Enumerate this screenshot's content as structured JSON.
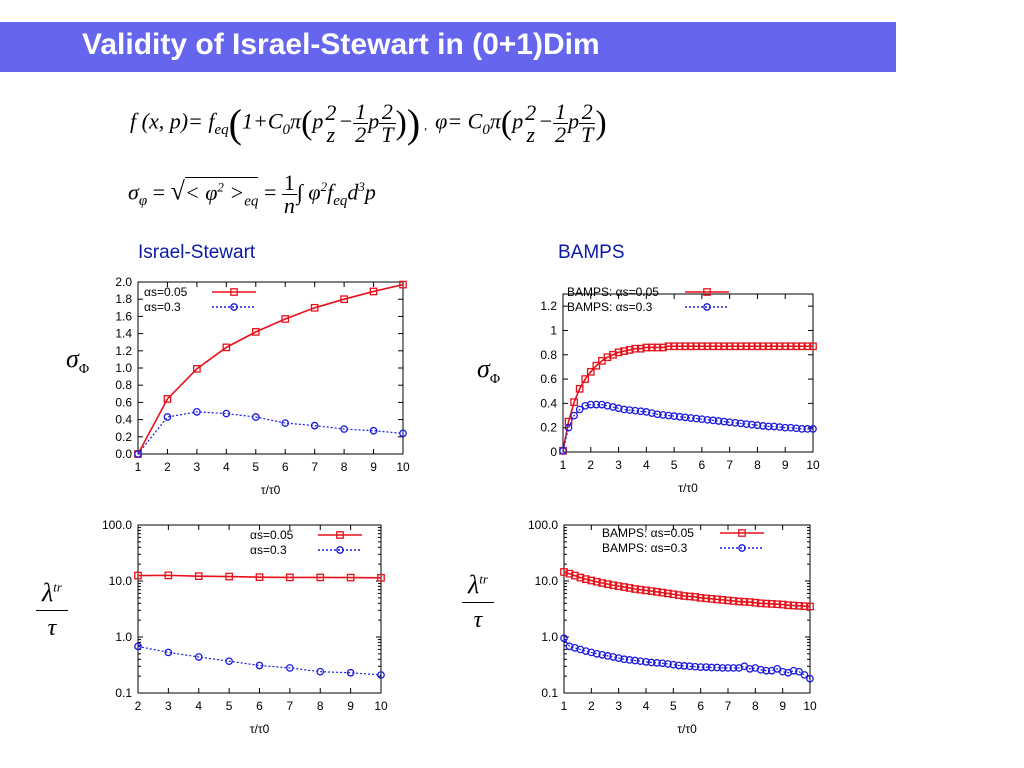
{
  "slide": {
    "title": "Validity of Israel-Stewart in (0+1)Dim",
    "equation1": {
      "lhs": "f (x, p)= f",
      "lhs_sub": "eq",
      "body": "1+C",
      "c_sub": "0",
      "pi": "π",
      "p": "p",
      "z2": "2",
      "z": "z",
      "minus": "−",
      "half_num": "1",
      "half_den": "2",
      "pT_num": "p2",
      "pT_den": "T",
      "phi_lhs": "φ= C",
      "sep": ","
    },
    "equation2": {
      "sigma": "σ",
      "sigma_sub": "φ",
      "eqs": "=",
      "bracket": "< φ",
      "two": "2",
      "close": ">",
      "eq_sub": "eq",
      "eq2": "=",
      "n_num": "1",
      "n_den": "n",
      "integral": "∫ φ",
      "f": "f",
      "f_sub": "eq",
      "d": "d",
      "three": "3",
      "p": "p"
    },
    "left_heading": "Israel-Stewart",
    "right_heading": "BAMPS",
    "sigma_label": "σ",
    "sigma_label_sub": "Φ",
    "lambda_label": "λ",
    "lambda_sup": "tr",
    "tau_label": "τ"
  },
  "chart_data": [
    {
      "id": "is-sigma",
      "type": "line",
      "xlabel": "τ/τ0",
      "ylabel": "σΦ",
      "xlim": [
        1,
        10
      ],
      "ylim": [
        0,
        2.0
      ],
      "xticks": [
        1,
        2,
        3,
        4,
        5,
        6,
        7,
        8,
        9,
        10
      ],
      "yticks": [
        0,
        0.2,
        0.4,
        0.6,
        0.8,
        1.0,
        1.2,
        1.4,
        1.6,
        1.8,
        2.0
      ],
      "ytick_labels": [
        "0.0",
        "0.2",
        "0.4",
        "0.6",
        "0.8",
        "1.0",
        "1.2",
        "1.4",
        "1.6",
        "1.8",
        "2.0"
      ],
      "legend_position": "top-left",
      "series": [
        {
          "name": "αs=0.05",
          "color": "#e8101a",
          "line": "solid",
          "marker": "square",
          "x": [
            1,
            2,
            3,
            4,
            5,
            6,
            7,
            8,
            9,
            10
          ],
          "y": [
            0.0,
            0.64,
            0.99,
            1.24,
            1.42,
            1.57,
            1.7,
            1.8,
            1.89,
            1.97
          ]
        },
        {
          "name": "αs=0.3",
          "color": "#1a1ae0",
          "line": "dotted",
          "marker": "circle",
          "x": [
            1,
            2,
            3,
            4,
            5,
            6,
            7,
            8,
            9,
            10
          ],
          "y": [
            0.0,
            0.43,
            0.49,
            0.47,
            0.43,
            0.36,
            0.33,
            0.29,
            0.27,
            0.24
          ]
        }
      ]
    },
    {
      "id": "bamps-sigma",
      "type": "line",
      "xlabel": "τ/τ0",
      "ylabel": "σΦ",
      "xlim": [
        1,
        10
      ],
      "ylim": [
        0,
        1.3
      ],
      "xticks": [
        1,
        2,
        3,
        4,
        5,
        6,
        7,
        8,
        9,
        10
      ],
      "yticks": [
        0,
        0.2,
        0.4,
        0.6,
        0.8,
        1.0,
        1.2
      ],
      "ytick_labels": [
        "0",
        "0.2",
        "0.4",
        "0.6",
        "0.8",
        "1",
        "1.2"
      ],
      "legend_position": "top-right",
      "series": [
        {
          "name": "BAMPS: αs=0.05",
          "color": "#e8101a",
          "line": "solid",
          "marker": "square",
          "x": [
            1,
            1.2,
            1.4,
            1.6,
            1.8,
            2,
            2.2,
            2.4,
            2.6,
            2.8,
            3,
            3.2,
            3.4,
            3.6,
            3.8,
            4,
            4.2,
            4.4,
            4.6,
            4.8,
            5,
            5.2,
            5.4,
            5.6,
            5.8,
            6,
            6.2,
            6.4,
            6.6,
            6.8,
            7,
            7.2,
            7.4,
            7.6,
            7.8,
            8,
            8.2,
            8.4,
            8.6,
            8.8,
            9,
            9.2,
            9.4,
            9.6,
            9.8,
            10
          ],
          "y": [
            0.01,
            0.25,
            0.41,
            0.52,
            0.6,
            0.66,
            0.71,
            0.75,
            0.78,
            0.8,
            0.82,
            0.83,
            0.84,
            0.85,
            0.85,
            0.86,
            0.86,
            0.86,
            0.86,
            0.87,
            0.87,
            0.87,
            0.87,
            0.87,
            0.87,
            0.87,
            0.87,
            0.87,
            0.87,
            0.87,
            0.87,
            0.87,
            0.87,
            0.87,
            0.87,
            0.87,
            0.87,
            0.87,
            0.87,
            0.87,
            0.87,
            0.87,
            0.87,
            0.87,
            0.87,
            0.87
          ]
        },
        {
          "name": "BAMPS: αs=0.3",
          "color": "#1a1ae0",
          "line": "dotted",
          "marker": "circle",
          "x": [
            1,
            1.2,
            1.4,
            1.6,
            1.8,
            2,
            2.2,
            2.4,
            2.6,
            2.8,
            3,
            3.2,
            3.4,
            3.6,
            3.8,
            4,
            4.2,
            4.4,
            4.6,
            4.8,
            5,
            5.2,
            5.4,
            5.6,
            5.8,
            6,
            6.2,
            6.4,
            6.6,
            6.8,
            7,
            7.2,
            7.4,
            7.6,
            7.8,
            8,
            8.2,
            8.4,
            8.6,
            8.8,
            9,
            9.2,
            9.4,
            9.6,
            9.8,
            10
          ],
          "y": [
            0.01,
            0.2,
            0.3,
            0.35,
            0.38,
            0.39,
            0.39,
            0.39,
            0.38,
            0.37,
            0.36,
            0.35,
            0.345,
            0.34,
            0.335,
            0.33,
            0.32,
            0.31,
            0.305,
            0.3,
            0.295,
            0.29,
            0.285,
            0.28,
            0.275,
            0.27,
            0.265,
            0.26,
            0.255,
            0.25,
            0.245,
            0.24,
            0.235,
            0.23,
            0.225,
            0.22,
            0.215,
            0.21,
            0.21,
            0.205,
            0.2,
            0.2,
            0.195,
            0.19,
            0.19,
            0.19
          ]
        }
      ]
    },
    {
      "id": "is-lambda",
      "type": "line",
      "yscale": "log",
      "xlabel": "τ/τ0",
      "ylabel": "λtr/τ",
      "xlim": [
        2,
        10
      ],
      "ylim": [
        0.1,
        100
      ],
      "xticks": [
        2,
        3,
        4,
        5,
        6,
        7,
        8,
        9,
        10
      ],
      "yticks": [
        0.1,
        1,
        10,
        100
      ],
      "ytick_labels": [
        "0.1",
        "1.0",
        "10.0",
        "100.0"
      ],
      "legend_position": "top-right",
      "series": [
        {
          "name": "αs=0.05",
          "color": "#e8101a",
          "line": "solid",
          "marker": "square",
          "x": [
            2,
            3,
            4,
            5,
            6,
            7,
            8,
            9,
            10
          ],
          "y": [
            12.5,
            12.6,
            12.2,
            12.0,
            11.7,
            11.6,
            11.6,
            11.5,
            11.4
          ]
        },
        {
          "name": "αs=0.3",
          "color": "#1a1ae0",
          "line": "dotted",
          "marker": "circle",
          "x": [
            2,
            3,
            4,
            5,
            6,
            7,
            8,
            9,
            10
          ],
          "y": [
            0.68,
            0.53,
            0.44,
            0.37,
            0.31,
            0.28,
            0.24,
            0.23,
            0.21
          ]
        }
      ]
    },
    {
      "id": "bamps-lambda",
      "type": "line",
      "yscale": "log",
      "xlabel": "τ/τ0",
      "ylabel": "λtr/τ",
      "xlim": [
        1,
        10
      ],
      "ylim": [
        0.1,
        100
      ],
      "xticks": [
        1,
        2,
        3,
        4,
        5,
        6,
        7,
        8,
        9,
        10
      ],
      "yticks": [
        0.1,
        1,
        10,
        100
      ],
      "ytick_labels": [
        "0.1",
        "1.0",
        "10.0",
        "100.0"
      ],
      "legend_position": "top-right",
      "series": [
        {
          "name": "BAMPS: αs=0.05",
          "color": "#e8101a",
          "line": "solid",
          "marker": "square",
          "x": [
            1,
            1.2,
            1.4,
            1.6,
            1.8,
            2,
            2.2,
            2.4,
            2.6,
            2.8,
            3,
            3.2,
            3.4,
            3.6,
            3.8,
            4,
            4.2,
            4.4,
            4.6,
            4.8,
            5,
            5.2,
            5.4,
            5.6,
            5.8,
            6,
            6.2,
            6.4,
            6.6,
            6.8,
            7,
            7.2,
            7.4,
            7.6,
            7.8,
            8,
            8.2,
            8.4,
            8.6,
            8.8,
            9,
            9.2,
            9.4,
            9.6,
            9.8,
            10
          ],
          "y": [
            14.5,
            13.5,
            12.5,
            11.5,
            10.8,
            10.2,
            9.7,
            9.2,
            8.8,
            8.4,
            8.1,
            7.8,
            7.5,
            7.2,
            7.0,
            6.8,
            6.6,
            6.4,
            6.2,
            6.0,
            5.8,
            5.6,
            5.4,
            5.3,
            5.2,
            5.0,
            4.9,
            4.8,
            4.7,
            4.6,
            4.5,
            4.4,
            4.3,
            4.25,
            4.2,
            4.1,
            4.0,
            3.95,
            3.9,
            3.85,
            3.8,
            3.7,
            3.65,
            3.6,
            3.55,
            3.5
          ]
        },
        {
          "name": "BAMPS: αs=0.3",
          "color": "#1a1ae0",
          "line": "dotted",
          "marker": "circle",
          "x": [
            1,
            1.2,
            1.4,
            1.6,
            1.8,
            2,
            2.2,
            2.4,
            2.6,
            2.8,
            3,
            3.2,
            3.4,
            3.6,
            3.8,
            4,
            4.2,
            4.4,
            4.6,
            4.8,
            5,
            5.2,
            5.4,
            5.6,
            5.8,
            6,
            6.2,
            6.4,
            6.6,
            6.8,
            7,
            7.2,
            7.4,
            7.6,
            7.8,
            8,
            8.2,
            8.4,
            8.6,
            8.8,
            9,
            9.2,
            9.4,
            9.6,
            9.8,
            10
          ],
          "y": [
            0.95,
            0.68,
            0.64,
            0.6,
            0.56,
            0.53,
            0.5,
            0.48,
            0.46,
            0.44,
            0.42,
            0.4,
            0.39,
            0.38,
            0.37,
            0.36,
            0.35,
            0.345,
            0.34,
            0.33,
            0.32,
            0.31,
            0.305,
            0.3,
            0.295,
            0.29,
            0.29,
            0.285,
            0.285,
            0.28,
            0.28,
            0.28,
            0.28,
            0.3,
            0.27,
            0.28,
            0.26,
            0.25,
            0.25,
            0.27,
            0.24,
            0.23,
            0.25,
            0.24,
            0.21,
            0.18
          ]
        }
      ]
    }
  ]
}
